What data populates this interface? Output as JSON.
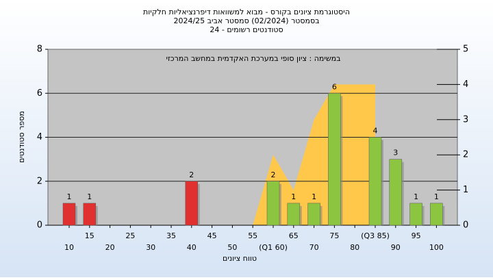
{
  "chart_data": {
    "type": "bar",
    "title": [
      "היסטוגרמת ציונים בקורס - מבוא למשוואות דיפרנציאליות חלקיות",
      "בסמסטר  (02/2024)  סמסטר אביב 2024/25",
      "סטודנטים רשומים - 24"
    ],
    "annotation": "במשימה : ציון סופי במערכת האקדמית במחשב המרכזי",
    "xlabel": "טווח ציונים",
    "ylabel": "מספר סטודנטים",
    "categories": [
      "10",
      "15",
      "20",
      "25",
      "30",
      "35",
      "40",
      "45",
      "50",
      "55",
      "(Q1 60)",
      "65",
      "70",
      "75",
      "80",
      "(Q3 85)",
      "90",
      "95",
      "100"
    ],
    "values": [
      1,
      1,
      0,
      0,
      0,
      0,
      2,
      0,
      0,
      0,
      2,
      1,
      1,
      6,
      0,
      4,
      3,
      1,
      1
    ],
    "bar_colors": [
      "#e03030",
      "#e03030",
      "#e03030",
      "#e03030",
      "#e03030",
      "#e03030",
      "#e03030",
      "#e03030",
      "#e03030",
      "#8cc540",
      "#8cc540",
      "#8cc540",
      "#8cc540",
      "#8cc540",
      "#8cc540",
      "#8cc540",
      "#8cc540",
      "#8cc540",
      "#8cc540"
    ],
    "area": {
      "values": [
        null,
        null,
        null,
        null,
        null,
        null,
        null,
        null,
        null,
        0,
        2,
        1,
        3,
        4,
        4,
        4,
        null,
        null,
        null
      ],
      "color": "#ffc84a",
      "axis": "y2"
    },
    "ylim": [
      0,
      8
    ],
    "yticks": [
      0,
      2,
      4,
      6,
      8
    ],
    "y2lim": [
      0,
      5
    ],
    "y2ticks": [
      0,
      1,
      2,
      3,
      4,
      5
    ],
    "grid": true
  }
}
